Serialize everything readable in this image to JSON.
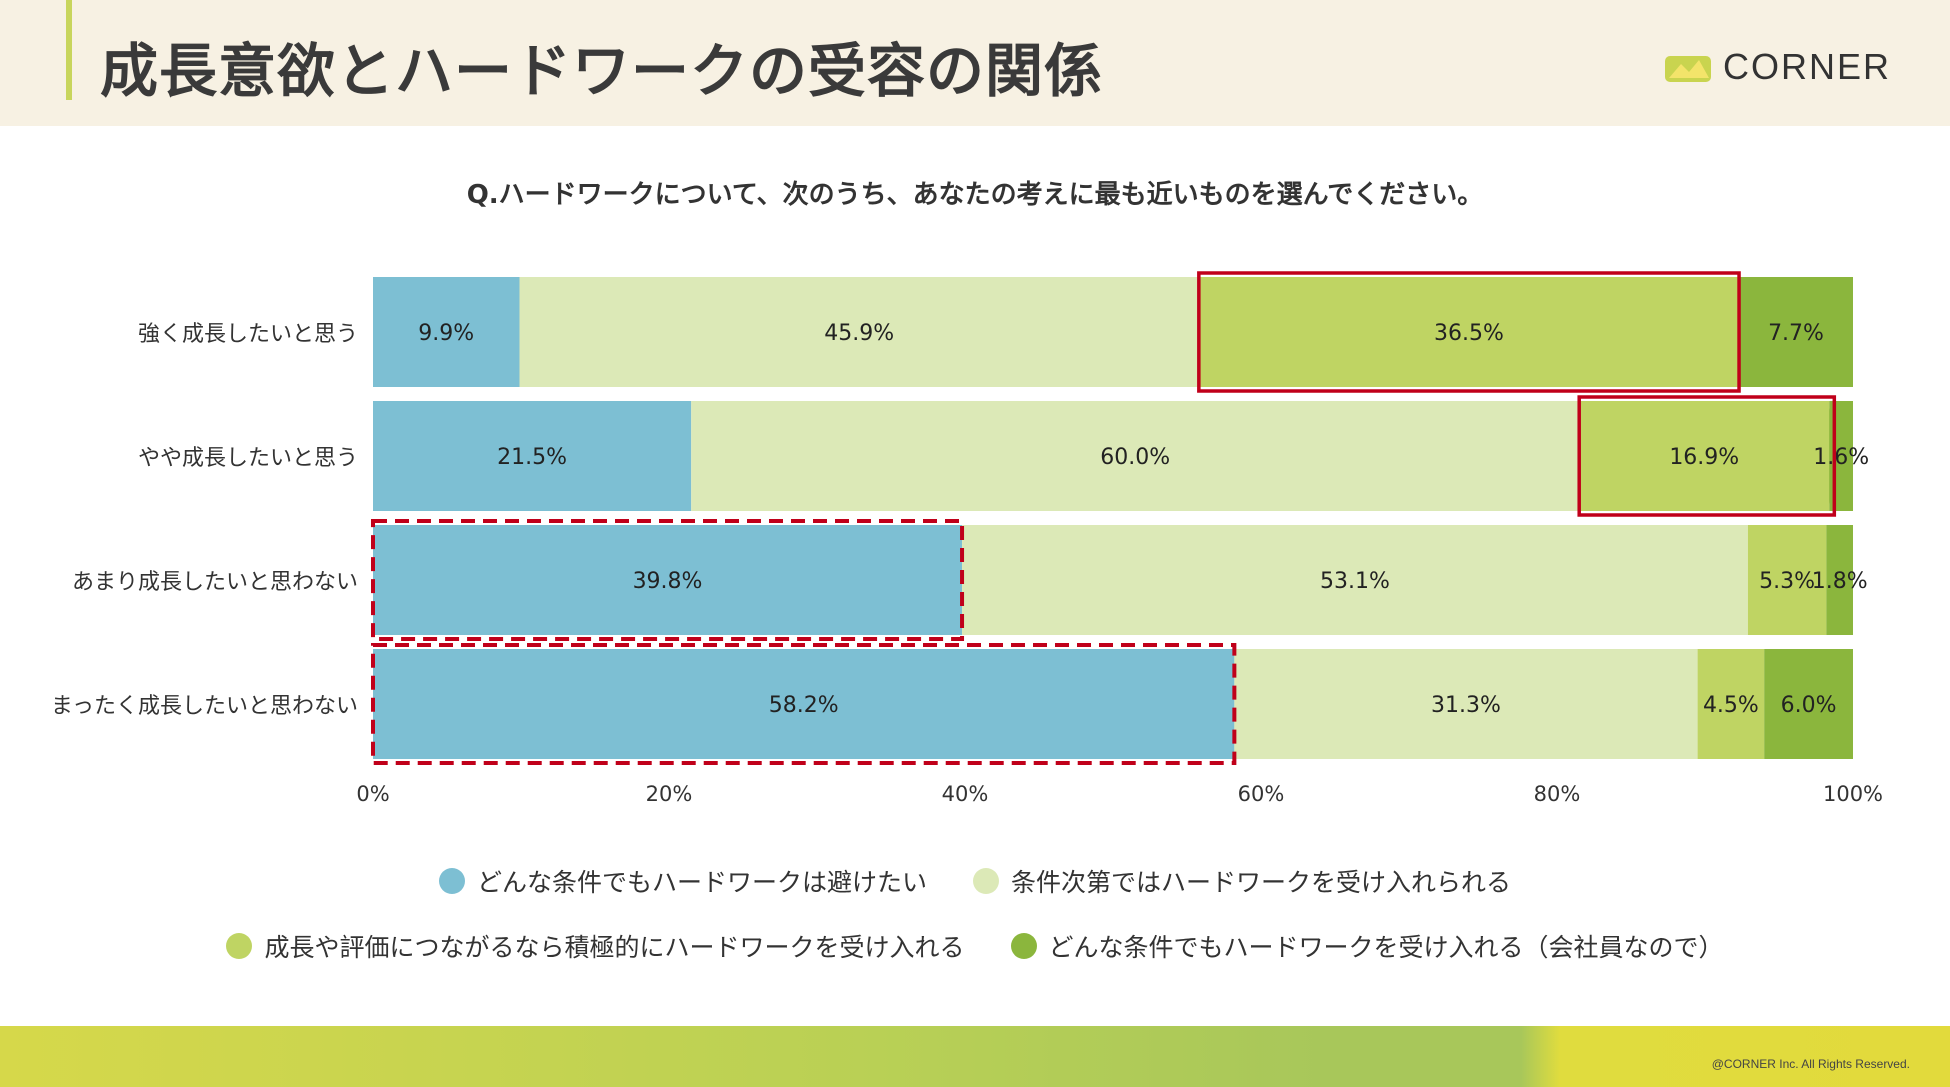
{
  "header": {
    "title": "成長意欲とハードワークの受容の関係",
    "logo_text": "CORNER"
  },
  "question": "Q.ハードワークについて、次のうち、あなたの考えに最も近いものを選んでください。",
  "legend": {
    "row1": [
      "どんな条件でもハードワークは避けたい",
      "条件次第ではハードワークを受け入れられる"
    ],
    "row2": [
      "成長や評価につながるなら積極的にハードワークを受け入れる",
      "どんな条件でもハードワークを受け入れる（会社員なので）"
    ]
  },
  "colors": {
    "avoid": "#7dbfd3",
    "conditional": "#dce9b7",
    "growth": "#bfd463",
    "always": "#8bb63d",
    "highlight": "#c0001a"
  },
  "footer": {
    "copyright": "@CORNER Inc. All Rights Reserved."
  },
  "chart_data": {
    "type": "bar",
    "orientation": "horizontal",
    "stacked": true,
    "categories": [
      "強く成長したいと思う",
      "やや成長したいと思う",
      "あまり成長したいと思わない",
      "まったく成長したいと思わない"
    ],
    "series": [
      {
        "name": "どんな条件でもハードワークは避けたい",
        "values": [
          9.9,
          21.5,
          39.8,
          58.2
        ],
        "labels": [
          "9.9%",
          "21.5%",
          "39.8%",
          "58.2%"
        ]
      },
      {
        "name": "条件次第ではハードワークを受け入れられる",
        "values": [
          45.9,
          60.0,
          53.1,
          31.3
        ],
        "labels": [
          "45.9%",
          "60.0%",
          "53.1%",
          "31.3%"
        ]
      },
      {
        "name": "成長や評価につながるなら積極的にハードワークを受け入れる",
        "values": [
          36.5,
          16.9,
          5.3,
          4.5
        ],
        "labels": [
          "36.5%",
          "16.9%",
          "5.3%",
          "4.5%"
        ]
      },
      {
        "name": "どんな条件でもハードワークを受け入れる（会社員なので）",
        "values": [
          7.7,
          1.6,
          1.8,
          6.0
        ],
        "labels": [
          "7.7%",
          "1.6%",
          "1.8%",
          "6.0%"
        ]
      }
    ],
    "xlim": [
      0,
      100
    ],
    "xticks": [
      "0%",
      "20%",
      "40%",
      "60%",
      "80%",
      "100%"
    ],
    "highlights": [
      {
        "category": "強く成長したいと思う",
        "series": "成長や評価につながるなら積極的にハードワークを受け入れる",
        "style": "solid"
      },
      {
        "category": "やや成長したいと思う",
        "series": "成長や評価につながるなら積極的にハードワークを受け入れる",
        "style": "solid"
      },
      {
        "category": "あまり成長したいと思わない",
        "series": "どんな条件でもハードワークは避けたい",
        "style": "dashed"
      },
      {
        "category": "まったく成長したいと思わない",
        "series": "どんな条件でもハードワークは避けたい",
        "style": "dashed"
      }
    ],
    "legend_position": "bottom"
  }
}
